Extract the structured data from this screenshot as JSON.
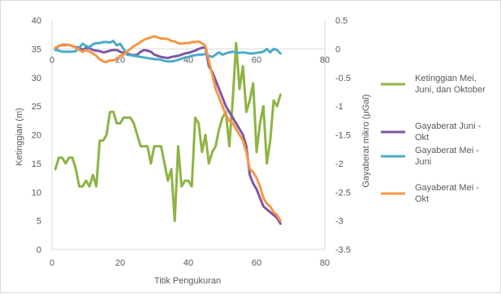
{
  "chart_data": {
    "type": "line",
    "xlabel": "Titik Pengukuran",
    "y1label": "Ketinggian (m)",
    "y2label": "Gayaberat mikro (μGal)",
    "xlim": [
      0,
      80
    ],
    "xticks_bottom": [
      0,
      20,
      40,
      60,
      80
    ],
    "xticks_top": [
      0,
      20,
      40,
      60,
      80
    ],
    "y1lim": [
      0,
      40
    ],
    "y1ticks": [
      0,
      5,
      10,
      15,
      20,
      25,
      30,
      35,
      40
    ],
    "y2lim": [
      -3.5,
      0.5
    ],
    "y2ticks": [
      "0.5",
      "0",
      "-0.5",
      "-1",
      "-1.5",
      "-2",
      "-2.5",
      "-3",
      "-3.5"
    ],
    "legend_position": "right",
    "grid": false,
    "series": [
      {
        "name": "Ketinggian Mei, Juni, dan Oktober",
        "axis": "left",
        "color": "#8db443",
        "x": [
          1,
          2,
          3,
          4,
          5,
          6,
          7,
          8,
          9,
          10,
          11,
          12,
          13,
          14,
          15,
          16,
          17,
          18,
          19,
          20,
          21,
          22,
          23,
          24,
          25,
          26,
          27,
          28,
          29,
          30,
          31,
          32,
          33,
          34,
          35,
          36,
          37,
          38,
          39,
          40,
          41,
          42,
          43,
          44,
          45,
          46,
          47,
          48,
          49,
          50,
          51,
          52,
          53,
          54,
          55,
          56,
          57,
          58,
          59,
          60,
          61,
          62,
          63,
          64,
          65,
          66,
          67
        ],
        "values": [
          14,
          16,
          16,
          15,
          16,
          16,
          14,
          11,
          11,
          12,
          11,
          13,
          11,
          19,
          19,
          20,
          24,
          24,
          22,
          22,
          23,
          23,
          23,
          22,
          20,
          18,
          18,
          18,
          15,
          18,
          18,
          18,
          15,
          12,
          14,
          5,
          18,
          11,
          12,
          12,
          11,
          23,
          22,
          17,
          20,
          15,
          17,
          18,
          21,
          23,
          24,
          18,
          26,
          36,
          28,
          32,
          24,
          26,
          29,
          17,
          22,
          25,
          15,
          19,
          26,
          25,
          27
        ]
      },
      {
        "name": "Gayaberat Juni - Okt",
        "axis": "right",
        "color": "#7e57a4",
        "x": [
          1,
          2,
          3,
          4,
          5,
          6,
          7,
          8,
          9,
          10,
          11,
          12,
          13,
          14,
          15,
          16,
          17,
          18,
          19,
          20,
          21,
          22,
          23,
          24,
          25,
          26,
          27,
          28,
          29,
          30,
          31,
          32,
          33,
          34,
          35,
          36,
          37,
          38,
          39,
          40,
          41,
          42,
          43,
          44,
          45,
          46,
          47,
          48,
          49,
          50,
          51,
          52,
          53,
          54,
          55,
          56,
          57,
          58,
          59,
          60,
          61,
          62,
          63,
          64,
          65,
          66,
          67
        ],
        "values": [
          0.0,
          0.05,
          0.07,
          0.07,
          0.07,
          0.05,
          0.03,
          0.02,
          -0.02,
          0.02,
          0.01,
          -0.02,
          -0.03,
          -0.04,
          -0.06,
          -0.05,
          -0.03,
          -0.02,
          -0.02,
          -0.05,
          -0.07,
          -0.08,
          -0.1,
          -0.11,
          -0.1,
          -0.05,
          -0.02,
          -0.03,
          -0.05,
          -0.1,
          -0.12,
          -0.14,
          -0.15,
          -0.16,
          -0.14,
          -0.13,
          -0.12,
          -0.1,
          -0.08,
          -0.07,
          -0.05,
          -0.03,
          0.0,
          0.02,
          0.03,
          -0.3,
          -0.4,
          -0.55,
          -0.7,
          -0.85,
          -1.0,
          -1.1,
          -1.2,
          -1.3,
          -1.4,
          -1.5,
          -1.7,
          -2.2,
          -2.35,
          -2.45,
          -2.6,
          -2.75,
          -2.8,
          -2.85,
          -2.9,
          -2.95,
          -3.05
        ]
      },
      {
        "name": "Gayaberat Mei - Juni",
        "axis": "right",
        "color": "#4bacc6",
        "x": [
          1,
          2,
          3,
          4,
          5,
          6,
          7,
          8,
          9,
          10,
          11,
          12,
          13,
          14,
          15,
          16,
          17,
          18,
          19,
          20,
          21,
          22,
          23,
          24,
          25,
          26,
          27,
          28,
          29,
          30,
          31,
          32,
          33,
          34,
          35,
          36,
          37,
          38,
          39,
          40,
          41,
          42,
          43,
          44,
          45,
          46,
          47,
          48,
          49,
          50,
          51,
          52,
          53,
          54,
          55,
          56,
          57,
          58,
          59,
          60,
          61,
          62,
          63,
          64,
          65,
          66,
          67
        ],
        "values": [
          -0.02,
          -0.03,
          -0.05,
          -0.05,
          -0.05,
          -0.05,
          -0.04,
          0.02,
          0.09,
          0.05,
          0.03,
          0.08,
          0.1,
          0.1,
          0.12,
          0.12,
          0.11,
          0.14,
          0.06,
          0.09,
          0.0,
          -0.1,
          -0.11,
          -0.12,
          -0.13,
          -0.14,
          -0.15,
          -0.16,
          -0.17,
          -0.18,
          -0.18,
          -0.19,
          -0.21,
          -0.22,
          -0.22,
          -0.21,
          -0.19,
          -0.17,
          -0.15,
          -0.14,
          -0.12,
          -0.11,
          -0.1,
          -0.1,
          -0.09,
          -0.12,
          -0.14,
          -0.1,
          -0.06,
          -0.1,
          -0.08,
          -0.06,
          -0.05,
          -0.06,
          -0.07,
          -0.06,
          -0.07,
          -0.08,
          -0.08,
          -0.07,
          -0.06,
          -0.05,
          0.0,
          -0.06,
          0.0,
          -0.02,
          -0.08
        ]
      },
      {
        "name": "Gayaberat Mei  - Okt",
        "axis": "right",
        "color": "#f79646",
        "x": [
          1,
          2,
          3,
          4,
          5,
          6,
          7,
          8,
          9,
          10,
          11,
          12,
          13,
          14,
          15,
          16,
          17,
          18,
          19,
          20,
          21,
          22,
          23,
          24,
          25,
          26,
          27,
          28,
          29,
          30,
          31,
          32,
          33,
          34,
          35,
          36,
          37,
          38,
          39,
          40,
          41,
          42,
          43,
          44,
          45,
          46,
          47,
          48,
          49,
          50,
          51,
          52,
          53,
          54,
          55,
          56,
          57,
          58,
          59,
          60,
          61,
          62,
          63,
          64,
          65,
          66,
          67
        ],
        "values": [
          0.02,
          0.05,
          0.06,
          0.06,
          0.07,
          0.05,
          0.02,
          -0.02,
          -0.05,
          -0.02,
          -0.05,
          -0.08,
          -0.12,
          -0.18,
          -0.22,
          -0.23,
          -0.2,
          -0.2,
          -0.18,
          -0.12,
          -0.1,
          -0.05,
          0.0,
          0.05,
          0.08,
          0.12,
          0.16,
          0.18,
          0.2,
          0.22,
          0.2,
          0.18,
          0.18,
          0.17,
          0.14,
          0.13,
          0.1,
          0.09,
          0.1,
          0.1,
          0.12,
          0.12,
          0.13,
          0.1,
          0.05,
          -0.2,
          -0.45,
          -0.7,
          -0.85,
          -1.0,
          -1.15,
          -1.25,
          -1.3,
          -1.4,
          -1.5,
          -1.6,
          -1.8,
          -2.1,
          -2.15,
          -2.25,
          -2.4,
          -2.6,
          -2.7,
          -2.75,
          -2.85,
          -2.9,
          -3.0
        ]
      }
    ]
  }
}
